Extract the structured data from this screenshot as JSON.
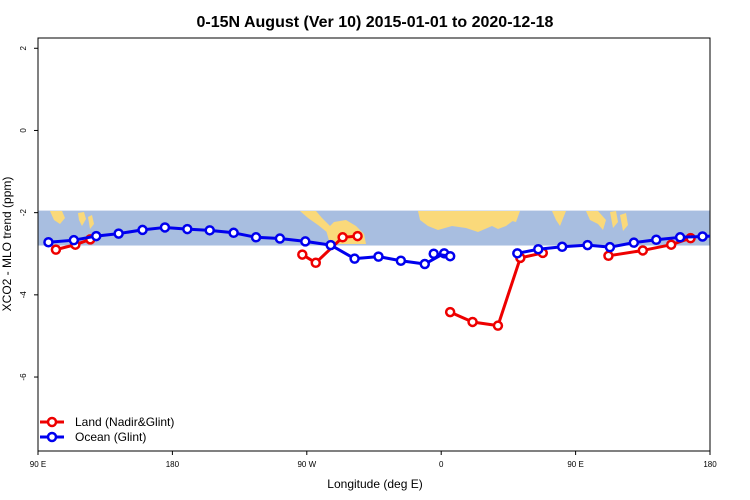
{
  "chart_data": {
    "type": "line",
    "title": "0-15N August (Ver 10)   2015-01-01 to 2020-12-18",
    "xlabel": "Longitude (deg E)",
    "ylabel": "XCO2 - MLO trend (ppm)",
    "xlim": [
      90,
      180
    ],
    "ylim": [
      -7.8,
      2.25
    ],
    "x_ticks": [
      {
        "value": 90,
        "label": "90 E"
      },
      {
        "value": 180,
        "label": "180"
      },
      {
        "value": 270,
        "label": "90 W"
      },
      {
        "value": 360,
        "label": "0"
      },
      {
        "value": 450,
        "label": "90 E"
      },
      {
        "value": 540,
        "label": "180"
      }
    ],
    "y_ticks": [
      {
        "value": 2,
        "label": "2"
      },
      {
        "value": 0,
        "label": "0"
      },
      {
        "value": -2,
        "label": "-2"
      },
      {
        "value": -4,
        "label": "-4"
      },
      {
        "value": -6,
        "label": "-6"
      }
    ],
    "grid": false,
    "legend": "bottom-left",
    "background_map": {
      "lat_band": "0-15N",
      "ymin": -2.8,
      "ymax": -1.95,
      "ocean_color": "#a8bee0",
      "land_color": "#fad97a"
    },
    "series": [
      {
        "name": "Land (Nadir&Glint)",
        "color": "#ee0000",
        "segments": [
          {
            "x": [
              102,
              115,
              125
            ],
            "y": [
              -2.9,
              -2.78,
              -2.65
            ]
          },
          {
            "x": [
              267,
              276,
              294,
              304
            ],
            "y": [
              -3.02,
              -3.22,
              -2.6,
              -2.57
            ]
          },
          {
            "x": [
              366,
              381,
              398,
              413,
              428
            ],
            "y": [
              -4.42,
              -4.66,
              -4.75,
              -3.1,
              -2.98
            ]
          },
          {
            "x": [
              472,
              495,
              514,
              527
            ],
            "y": [
              -3.05,
              -2.92,
              -2.78,
              -2.62
            ]
          }
        ]
      },
      {
        "name": "Ocean (Glint)",
        "color": "#0000ee",
        "segments": [
          {
            "x": [
              97,
              114,
              129,
              144,
              160,
              175,
              190,
              205,
              221,
              236,
              252,
              269,
              286,
              302,
              318,
              333,
              349,
              362
            ],
            "y": [
              -2.72,
              -2.67,
              -2.57,
              -2.51,
              -2.42,
              -2.36,
              -2.4,
              -2.43,
              -2.49,
              -2.6,
              -2.63,
              -2.7,
              -2.79,
              -3.12,
              -3.07,
              -3.17,
              -3.25,
              -2.99
            ]
          },
          {
            "x": [
              355,
              366
            ],
            "y": [
              -3.0,
              -3.06
            ]
          },
          {
            "x": [
              411,
              425,
              441,
              458,
              473,
              489,
              504,
              520,
              535,
              550,
              565,
              581,
              597,
              613
            ],
            "y": [
              -2.99,
              -2.89,
              -2.83,
              -2.79,
              -2.84,
              -2.73,
              -2.66,
              -2.6,
              -2.58,
              -2.55,
              -2.5,
              -2.43,
              -2.36,
              -2.32
            ]
          }
        ]
      }
    ]
  }
}
